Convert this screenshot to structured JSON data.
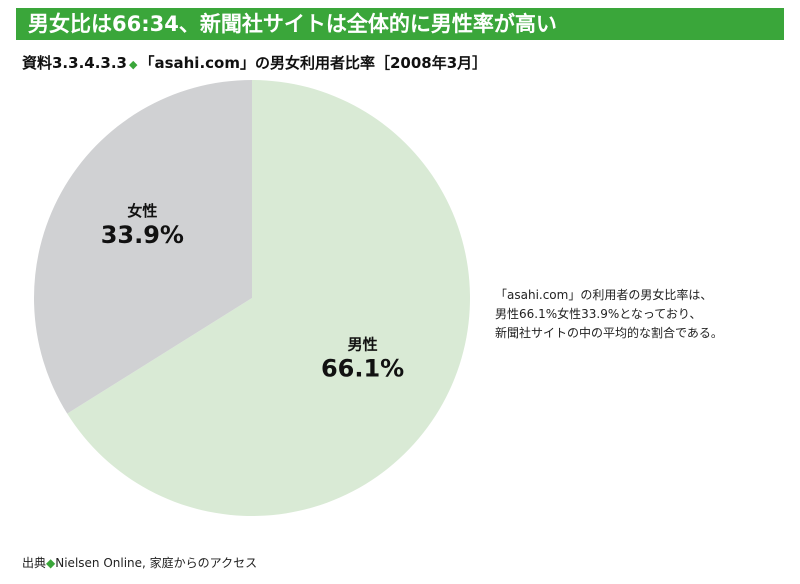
{
  "banner": {
    "title": "男女比は66:34、新聞社サイトは全体的に男性率が高い"
  },
  "subtitle": {
    "number": "資料3.3.4.3.3",
    "marker": "◆",
    "text": "「asahi.com」の男女利用者比率［2008年3月］"
  },
  "chart_data": {
    "type": "pie",
    "title": "「asahi.com」の男女利用者比率［2008年3月］",
    "slices": [
      {
        "label": "男性",
        "value": 66.1,
        "display": "66.1%",
        "color": "#d9ead5"
      },
      {
        "label": "女性",
        "value": 33.9,
        "display": "33.9%",
        "color": "#d0d1d3"
      }
    ],
    "start": "top",
    "direction": "clockwise"
  },
  "note": {
    "lines": [
      "「asahi.com」の利用者の男女比率は、",
      "男性66.1%女性33.9%となっており、",
      "新聞社サイトの中の平均的な割合である。"
    ]
  },
  "source": {
    "prefix": "出典",
    "marker": "◆",
    "text": "Nielsen Online, 家庭からのアクセス"
  }
}
